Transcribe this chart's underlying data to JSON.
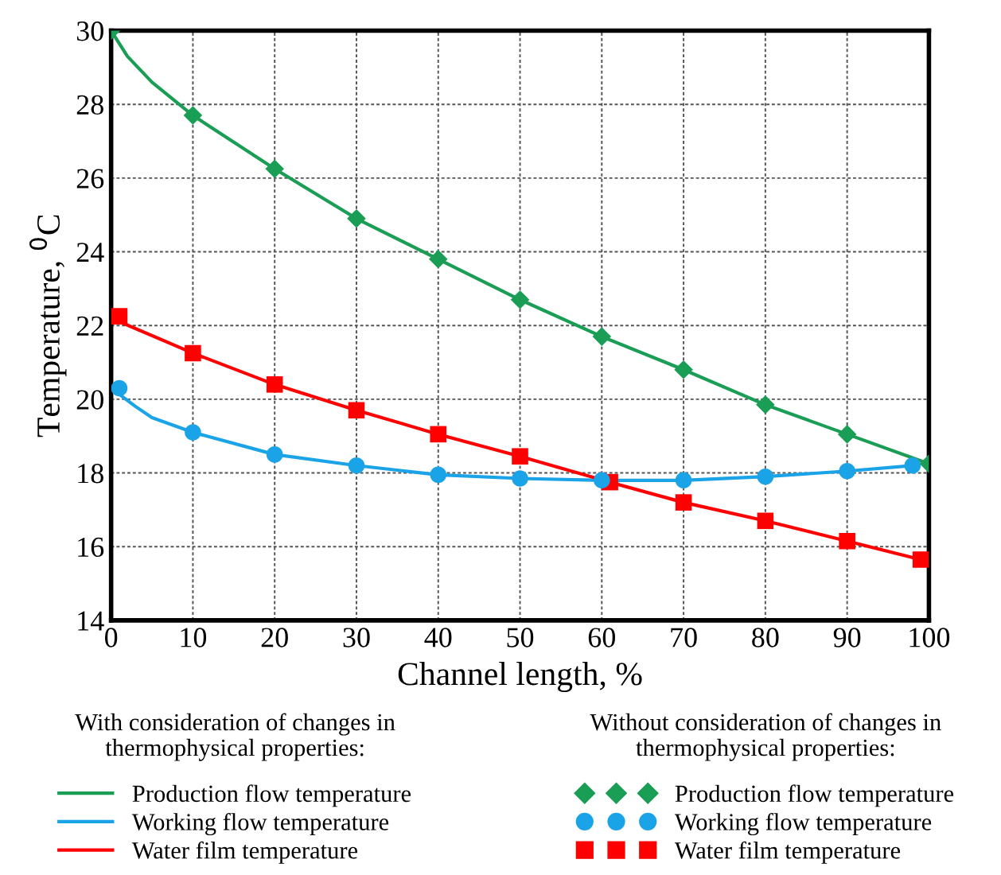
{
  "chart_data": {
    "type": "line",
    "xlabel": "Channel length, %",
    "ylabel": "Temperature, $^{0}$C",
    "xlim": [
      0,
      100
    ],
    "ylim": [
      14,
      30
    ],
    "xticks": [
      0,
      10,
      20,
      30,
      40,
      50,
      60,
      70,
      80,
      90,
      100
    ],
    "yticks": [
      14,
      16,
      18,
      20,
      22,
      24,
      26,
      28,
      30
    ],
    "grid": true,
    "legend": "bottom",
    "legend_title": [
      "With consideration of changes in thermophysical properties:",
      "Without consideration of changes in thermophysical properties:"
    ],
    "series": [
      {
        "type": "line",
        "name": "Production flow temperature",
        "color": "#1a9e55",
        "x": [
          0,
          2,
          5,
          10,
          20,
          30,
          40,
          50,
          60,
          70,
          80,
          90,
          100
        ],
        "values": [
          30,
          29.3,
          28.6,
          27.7,
          26.25,
          24.9,
          23.8,
          22.7,
          21.7,
          20.8,
          19.85,
          19.05,
          18.25
        ]
      },
      {
        "type": "line",
        "name": "Working flow temperature",
        "color": "#1ba3e8",
        "x": [
          0,
          3,
          5,
          10,
          20,
          30,
          40,
          50,
          60,
          70,
          80,
          90,
          98
        ],
        "values": [
          20.3,
          19.8,
          19.5,
          19.1,
          18.5,
          18.2,
          17.95,
          17.85,
          17.8,
          17.8,
          17.9,
          18.05,
          18.2
        ]
      },
      {
        "type": "line",
        "name": "Water film temperature",
        "color": "#ff0000",
        "x": [
          0,
          10,
          20,
          30,
          40,
          50,
          61,
          70,
          80,
          90,
          99
        ],
        "values": [
          22.2,
          21.25,
          20.4,
          19.7,
          19.05,
          18.45,
          17.75,
          17.2,
          16.7,
          16.15,
          15.65
        ]
      },
      {
        "type": "scatter",
        "name": "Production flow temperature",
        "color": "#1a9e55",
        "marker": "diamond",
        "x": [
          0,
          10,
          20,
          30,
          40,
          50,
          60,
          70,
          80,
          90,
          100
        ],
        "values": [
          30,
          27.7,
          26.25,
          24.9,
          23.8,
          22.7,
          21.7,
          20.8,
          19.85,
          19.05,
          18.25
        ]
      },
      {
        "type": "scatter",
        "name": "Working flow temperature",
        "color": "#1ba3e8",
        "marker": "circle",
        "x": [
          1,
          10,
          20,
          30,
          40,
          50,
          60,
          70,
          80,
          90,
          98
        ],
        "values": [
          20.3,
          19.1,
          18.5,
          18.2,
          17.95,
          17.85,
          17.8,
          17.8,
          17.9,
          18.05,
          18.2
        ]
      },
      {
        "type": "scatter",
        "name": "Water film temperature",
        "color": "#ff0000",
        "marker": "square",
        "x": [
          1,
          10,
          20,
          30,
          40,
          50,
          61,
          70,
          80,
          90,
          99
        ],
        "values": [
          22.25,
          21.25,
          20.4,
          19.7,
          19.05,
          18.45,
          17.75,
          17.2,
          16.7,
          16.15,
          15.65
        ]
      }
    ]
  }
}
